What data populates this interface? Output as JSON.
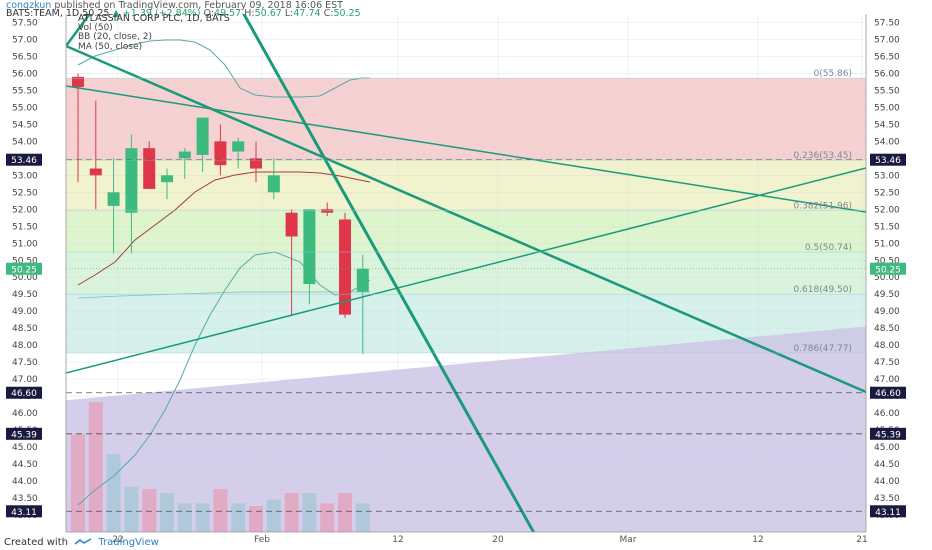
{
  "header": {
    "author": "congzkun",
    "published": "published on TradingView.com, February 09, 2018 16:06 EST",
    "symbol_line": "BATS:TEAM, 1D",
    "last": "50.25",
    "change": "▲ +1.39 (+2.84%)",
    "o_label": "O:",
    "o_val": "49.57",
    "h_label": "H:",
    "h_val": "50.67",
    "l_label": "L:",
    "l_val": "47.74",
    "c_label": "C:",
    "c_val": "50.25"
  },
  "legend": {
    "title": "ATLASSIAN CORP PLC, 1D, BATS",
    "vol": "Vol (50)",
    "bb": "BB (20, close, 2)",
    "ma": "MA (50, close)"
  },
  "footer": {
    "created": "Created with",
    "brand": "TradingView"
  },
  "colors": {
    "up": "#3dbb7e",
    "down": "#e0364a",
    "trend": "#1a9a7a",
    "bb": "#5aa8a8",
    "ma": "#a83a32",
    "axis_badge": "#1a1a40"
  },
  "chart_data": {
    "type": "candlestick",
    "ylim": [
      42.5,
      57.75
    ],
    "y_ticks": [
      "43.00",
      "43.50",
      "44.00",
      "44.50",
      "45.00",
      "45.50",
      "46.00",
      "46.50",
      "47.00",
      "47.50",
      "48.00",
      "48.50",
      "49.00",
      "49.50",
      "50.00",
      "50.50",
      "51.00",
      "51.50",
      "52.00",
      "52.50",
      "53.00",
      "53.50",
      "54.00",
      "54.50",
      "55.00",
      "55.50",
      "56.00",
      "56.50",
      "57.00",
      "57.50"
    ],
    "x_ticks": [
      "22",
      "Feb",
      "12",
      "20",
      "Mar",
      "12",
      "21"
    ],
    "price_badges": [
      {
        "label": "53.46",
        "value": 53.46
      },
      {
        "label": "50.25",
        "value": 50.25
      },
      {
        "label": "46.60",
        "value": 46.6
      },
      {
        "label": "45.39",
        "value": 45.39
      },
      {
        "label": "43.11",
        "value": 43.11
      }
    ],
    "fib_levels": [
      {
        "label": "0(55.86)",
        "value": 55.86
      },
      {
        "label": "0.236(53.45)",
        "value": 53.45
      },
      {
        "label": "0.382(51.96)",
        "value": 51.96
      },
      {
        "label": "0.5(50.74)",
        "value": 50.74
      },
      {
        "label": "0.618(49.50)",
        "value": 49.5
      },
      {
        "label": "0.786(47.77)",
        "value": 47.77
      }
    ],
    "candles": [
      {
        "o": 55.9,
        "h": 56.0,
        "l": 52.8,
        "c": 55.6
      },
      {
        "o": 53.2,
        "h": 55.2,
        "l": 52.0,
        "c": 53.0
      },
      {
        "o": 52.1,
        "h": 53.5,
        "l": 50.7,
        "c": 52.5
      },
      {
        "o": 51.9,
        "h": 54.2,
        "l": 50.7,
        "c": 53.8
      },
      {
        "o": 53.8,
        "h": 54.0,
        "l": 52.6,
        "c": 52.6
      },
      {
        "o": 52.8,
        "h": 53.2,
        "l": 52.3,
        "c": 53.0
      },
      {
        "o": 53.5,
        "h": 53.8,
        "l": 52.9,
        "c": 53.7
      },
      {
        "o": 53.6,
        "h": 54.7,
        "l": 53.1,
        "c": 54.7
      },
      {
        "o": 54.0,
        "h": 54.5,
        "l": 53.0,
        "c": 53.3
      },
      {
        "o": 53.7,
        "h": 54.1,
        "l": 53.2,
        "c": 54.0
      },
      {
        "o": 53.5,
        "h": 54.0,
        "l": 52.8,
        "c": 53.2
      },
      {
        "o": 52.5,
        "h": 53.5,
        "l": 52.3,
        "c": 53.0
      },
      {
        "o": 51.9,
        "h": 52.0,
        "l": 48.9,
        "c": 51.2
      },
      {
        "o": 49.8,
        "h": 52.0,
        "l": 49.2,
        "c": 52.0
      },
      {
        "o": 52.0,
        "h": 52.2,
        "l": 51.8,
        "c": 51.9
      },
      {
        "o": 51.7,
        "h": 51.9,
        "l": 48.8,
        "c": 48.9
      },
      {
        "o": 49.57,
        "h": 50.67,
        "l": 47.74,
        "c": 50.25
      }
    ],
    "volume": [
      0.75,
      1.0,
      0.6,
      0.35,
      0.33,
      0.3,
      0.22,
      0.22,
      0.33,
      0.22,
      0.2,
      0.25,
      0.3,
      0.3,
      0.22,
      0.3,
      0.22
    ]
  }
}
